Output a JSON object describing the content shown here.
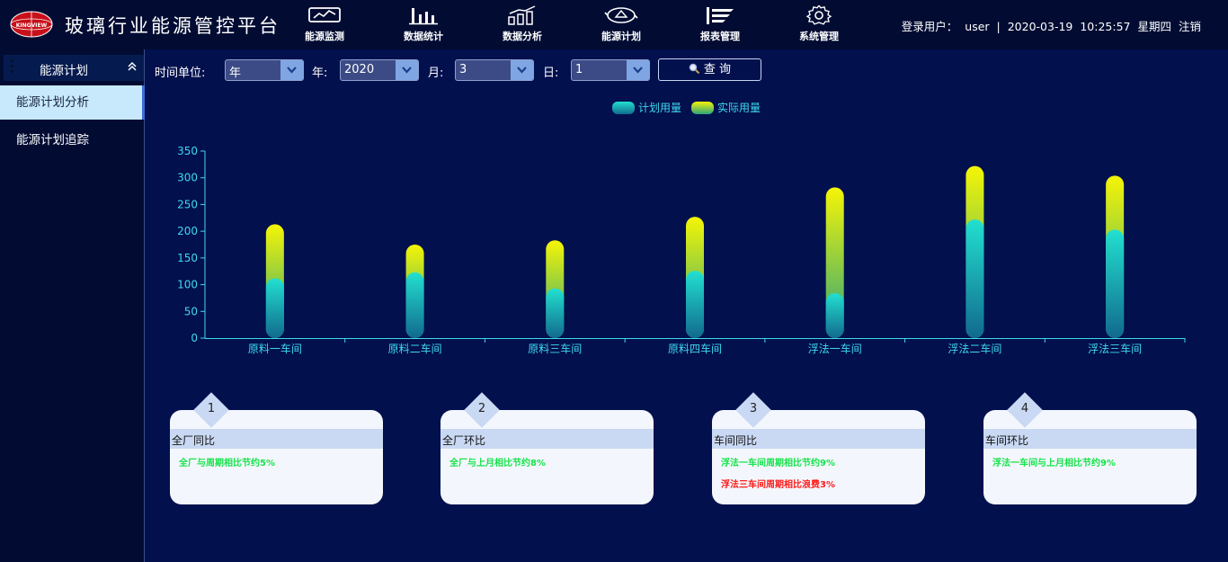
{
  "app": {
    "title": "玻璃行业能源管控平台",
    "logo_text": "KINGVIEW"
  },
  "nav": [
    {
      "label": "能源监测",
      "icon": "monitor-chart-icon"
    },
    {
      "label": "数据统计",
      "icon": "bar-stats-icon"
    },
    {
      "label": "数据分析",
      "icon": "analysis-trend-icon"
    },
    {
      "label": "能源计划",
      "icon": "recycle-plan-icon"
    },
    {
      "label": "报表管理",
      "icon": "report-lines-icon"
    },
    {
      "label": "系统管理",
      "icon": "gear-icon"
    }
  ],
  "user": {
    "prefix": "登录用户：",
    "name": "user",
    "separator": "|",
    "date": "2020-03-19",
    "time": "10:25:57",
    "weekday": "星期四",
    "logout": "注销"
  },
  "sidebar": {
    "title": "能源计划",
    "items": [
      {
        "label": "能源计划分析",
        "active": true
      },
      {
        "label": "能源计划追踪",
        "active": false
      }
    ]
  },
  "filter": {
    "unit_label": "时间单位:",
    "unit_value": "年",
    "year_label": "年:",
    "year_value": "2020",
    "month_label": "月:",
    "month_value": "3",
    "day_label": "日:",
    "day_value": "1",
    "query_label": "查 询"
  },
  "chart_data": {
    "type": "bar",
    "categories": [
      "原料一车间",
      "原料二车间",
      "原料三车间",
      "原料四车间",
      "浮法一车间",
      "浮法二车间",
      "浮法三车间"
    ],
    "series": [
      {
        "name": "计划用量",
        "values": [
          112,
          123,
          93,
          126,
          84,
          222,
          203
        ]
      },
      {
        "name": "实际用量",
        "values": [
          213,
          175,
          183,
          227,
          282,
          322,
          304
        ]
      }
    ],
    "ylim": [
      0,
      350
    ],
    "yticks": [
      0,
      50,
      100,
      150,
      200,
      250,
      300,
      350
    ],
    "legend_position": "top-center",
    "grid": false,
    "colors": {
      "plan_top": "#22e0d0",
      "plan_bottom": "#116a8e",
      "actual_top": "#f5f505",
      "actual_bottom": "#2aa37e",
      "axis": "#3fd8ee"
    }
  },
  "cards": [
    {
      "num": "1",
      "title": "全厂同比",
      "lines": [
        {
          "text": "全厂与周期相比节约5%",
          "status": "ok"
        }
      ]
    },
    {
      "num": "2",
      "title": "全厂环比",
      "lines": [
        {
          "text": "全厂与上月相比节约8%",
          "status": "ok"
        }
      ]
    },
    {
      "num": "3",
      "title": "车间同比",
      "lines": [
        {
          "text": "浮法一车间周期相比节约9%",
          "status": "ok"
        },
        {
          "text": "浮法三车间周期相比浪费3%",
          "status": "bad"
        }
      ]
    },
    {
      "num": "4",
      "title": "车间环比",
      "lines": [
        {
          "text": "浮法一车间与上月相比节约9%",
          "status": "ok"
        }
      ]
    }
  ]
}
